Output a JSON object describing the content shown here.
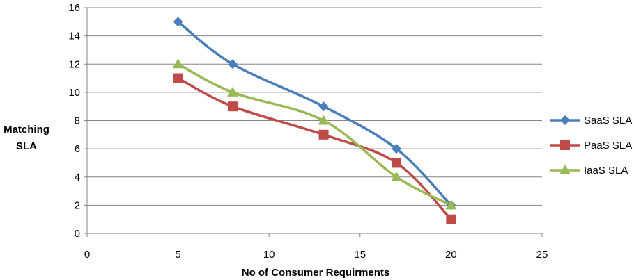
{
  "chart_data": {
    "type": "line",
    "title": "",
    "xlabel": "No of Consumer Requirments",
    "ylabel": [
      "Matching",
      "SLA"
    ],
    "xlim": [
      0,
      25
    ],
    "ylim": [
      0,
      16
    ],
    "xticks": [
      0,
      5,
      10,
      15,
      20,
      25
    ],
    "yticks": [
      0,
      2,
      4,
      6,
      8,
      10,
      12,
      14,
      16
    ],
    "grid": "horizontal",
    "smooth": true,
    "legend": "right",
    "series": [
      {
        "name": "SaaS SLA",
        "color": "#4A7EBB",
        "marker": "diamond",
        "x": [
          5,
          8,
          13,
          17,
          20
        ],
        "y": [
          15,
          12,
          9,
          6,
          2
        ]
      },
      {
        "name": "PaaS SLA",
        "color": "#BE4B48",
        "marker": "square",
        "x": [
          5,
          8,
          13,
          17,
          20
        ],
        "y": [
          11,
          9,
          7,
          5,
          1
        ]
      },
      {
        "name": "IaaS SLA",
        "color": "#98B954",
        "marker": "triangle",
        "x": [
          5,
          8,
          13,
          17,
          20
        ],
        "y": [
          12,
          10,
          8,
          4,
          2
        ]
      }
    ]
  }
}
